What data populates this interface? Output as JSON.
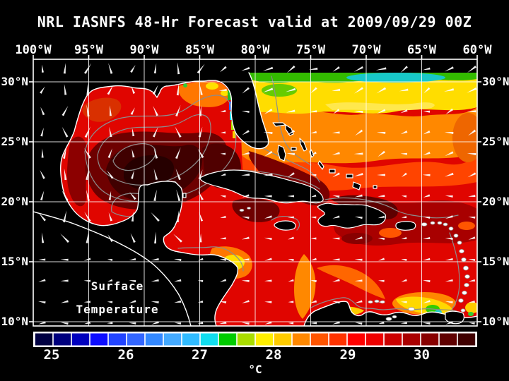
{
  "title": "NRL IASNFS  48-Hr Forecast valid at 2009/09/29 00Z",
  "axes": {
    "top": [
      "100°W",
      "95°W",
      "90°W",
      "85°W",
      "80°W",
      "75°W",
      "70°W",
      "65°W",
      "60°W"
    ],
    "left": [
      "30°N",
      "25°N",
      "20°N",
      "15°N",
      "10°N"
    ],
    "right": [
      "30°N",
      "25°N",
      "20°N",
      "15°N",
      "10°N"
    ]
  },
  "annotation": {
    "line1": "Surface",
    "line2": "Temperature"
  },
  "colorbar": {
    "unit": "°C",
    "tick_labels": [
      "25",
      "26",
      "27",
      "28",
      "29",
      "30"
    ],
    "segment_colors": [
      "#000042",
      "#00007E",
      "#0000BE",
      "#0D0DFF",
      "#2244FF",
      "#3366FF",
      "#3388FF",
      "#44AAFF",
      "#30BBFF",
      "#11DDEE",
      "#00CC00",
      "#AADD00",
      "#FFEE00",
      "#FFCC00",
      "#FF8800",
      "#FF5500",
      "#FF3300",
      "#FF0000",
      "#EE0000",
      "#CC0000",
      "#AA0000",
      "#880000",
      "#600000",
      "#400000"
    ]
  },
  "colors": {
    "background": "#000000",
    "text": "#ffffff",
    "grid": "#ffffff",
    "contour": "#8c8c8c",
    "base_sea": "#E00500"
  }
}
